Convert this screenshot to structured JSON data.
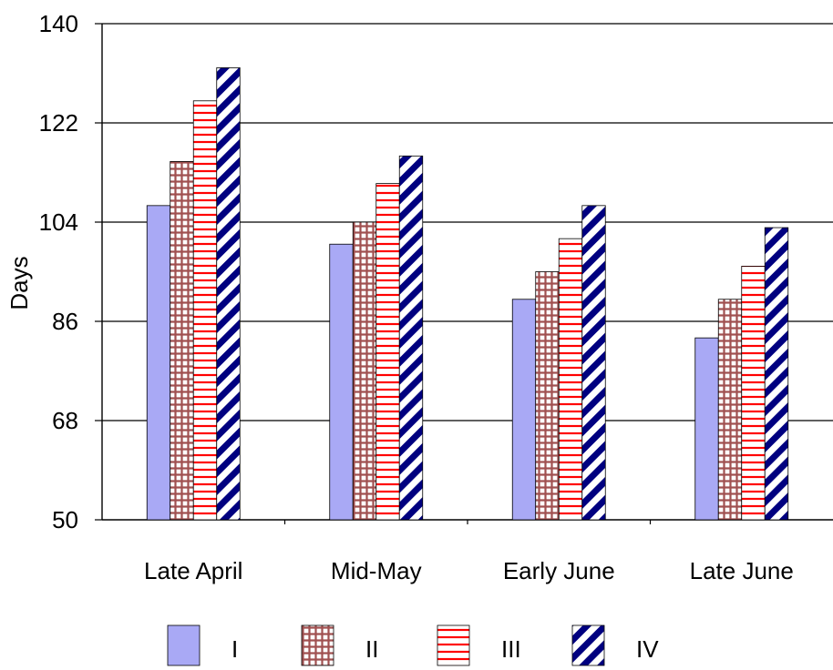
{
  "chart_data": {
    "type": "bar",
    "xlabel": "",
    "ylabel": "Days",
    "ylim": [
      50,
      140
    ],
    "yticks": [
      50,
      68,
      86,
      104,
      122,
      140
    ],
    "grid": true,
    "legend_position": "bottom",
    "categories": [
      "Late April",
      "Mid-May",
      "Early June",
      "Late June"
    ],
    "series": [
      {
        "name": "I",
        "pattern": "solid",
        "color": "#a9a9f5",
        "values": [
          107,
          100,
          90,
          83
        ]
      },
      {
        "name": "II",
        "pattern": "grid",
        "color": "#a05050",
        "values": [
          115,
          104,
          95,
          90
        ]
      },
      {
        "name": "III",
        "pattern": "horizontal",
        "color": "#ff0000",
        "values": [
          126,
          111,
          101,
          96
        ]
      },
      {
        "name": "IV",
        "pattern": "diagonal-stripe",
        "color": "#000080",
        "values": [
          132,
          116,
          107,
          103
        ]
      }
    ]
  }
}
